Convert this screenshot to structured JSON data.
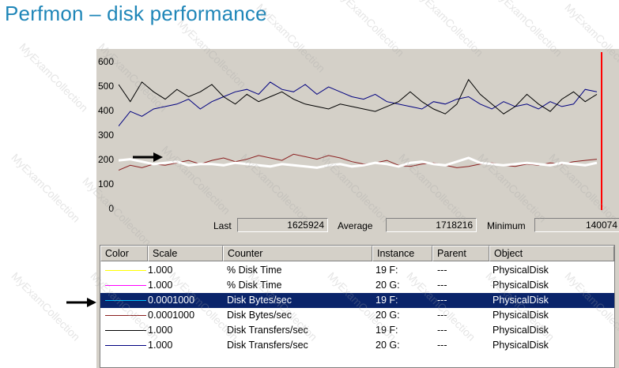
{
  "slide": {
    "title": "Perfmon – disk performance"
  },
  "chart_data": {
    "type": "line",
    "y_ticks": [
      "600",
      "500",
      "400",
      "300",
      "200",
      "100",
      "0"
    ],
    "ylim": [
      0,
      600
    ],
    "grid": false,
    "time_marker": "red vertical bar at right edge",
    "series": [
      {
        "color": "#000080",
        "values": [
          330,
          390,
          370,
          400,
          410,
          420,
          440,
          400,
          430,
          450,
          470,
          480,
          460,
          510,
          480,
          470,
          500,
          460,
          490,
          470,
          450,
          440,
          460,
          430,
          420,
          410,
          400,
          430,
          420,
          440,
          450,
          420,
          400,
          430,
          410,
          420,
          400,
          430,
          410,
          420,
          480,
          470
        ]
      },
      {
        "color": "#000000",
        "values": [
          500,
          430,
          510,
          470,
          440,
          480,
          450,
          470,
          500,
          450,
          420,
          460,
          430,
          450,
          470,
          440,
          420,
          410,
          400,
          420,
          410,
          400,
          390,
          410,
          430,
          470,
          430,
          400,
          380,
          420,
          520,
          460,
          420,
          380,
          410,
          460,
          420,
          390,
          440,
          470,
          430,
          460
        ]
      },
      {
        "color": "#8b2020",
        "values": [
          150,
          170,
          160,
          175,
          170,
          180,
          190,
          175,
          190,
          200,
          185,
          195,
          210,
          200,
          190,
          215,
          205,
          195,
          210,
          200,
          185,
          175,
          180,
          190,
          170,
          165,
          175,
          180,
          170,
          160,
          165,
          175,
          180,
          170,
          165,
          175,
          170,
          180,
          175,
          185,
          190,
          195
        ]
      },
      {
        "color": "#ffffff",
        "values": [
          190,
          195,
          185,
          175,
          180,
          185,
          170,
          175,
          175,
          170,
          180,
          175,
          170,
          165,
          175,
          170,
          165,
          160,
          170,
          175,
          165,
          170,
          180,
          175,
          165,
          180,
          185,
          175,
          170,
          185,
          200,
          180,
          175,
          170,
          175,
          180,
          175,
          170,
          180,
          175,
          170,
          180
        ]
      }
    ]
  },
  "stats": {
    "last_label": "Last",
    "last_value": "1625924",
    "average_label": "Average",
    "average_value": "1718216",
    "minimum_label": "Minimum",
    "minimum_value": "140074"
  },
  "legend": {
    "headers": [
      "Color",
      "Scale",
      "Counter",
      "Instance",
      "Parent",
      "Object"
    ],
    "rows": [
      {
        "color": "#ffff00",
        "scale": "1.000",
        "counter": "% Disk Time",
        "instance": "19 F:",
        "parent": "---",
        "object": "PhysicalDisk",
        "selected": false
      },
      {
        "color": "#ff00ff",
        "scale": "1.000",
        "counter": "% Disk Time",
        "instance": "20 G:",
        "parent": "---",
        "object": "PhysicalDisk",
        "selected": false
      },
      {
        "color": "#00c0ff",
        "scale": "0.0001000",
        "counter": "Disk Bytes/sec",
        "instance": "19 F:",
        "parent": "---",
        "object": "PhysicalDisk",
        "selected": true
      },
      {
        "color": "#8b2020",
        "scale": "0.0001000",
        "counter": "Disk Bytes/sec",
        "instance": "20 G:",
        "parent": "---",
        "object": "PhysicalDisk",
        "selected": false
      },
      {
        "color": "#000000",
        "scale": "1.000",
        "counter": "Disk Transfers/sec",
        "instance": "19 F:",
        "parent": "---",
        "object": "PhysicalDisk",
        "selected": false
      },
      {
        "color": "#000080",
        "scale": "1.000",
        "counter": "Disk Transfers/sec",
        "instance": "20 G:",
        "parent": "---",
        "object": "PhysicalDisk",
        "selected": false
      }
    ]
  },
  "watermark": {
    "text": "MyExamCollection"
  }
}
